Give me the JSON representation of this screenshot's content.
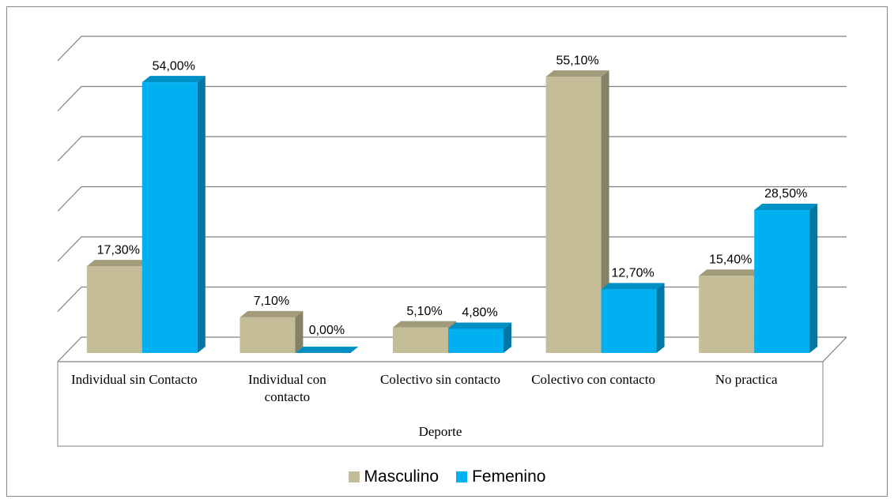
{
  "chart_data": {
    "type": "bar3d",
    "categories": [
      "Individual sin Contacto",
      "Individual con contacto",
      "Colectivo sin contacto",
      "Colectivo con contacto",
      "No practica"
    ],
    "x_label": "Deporte",
    "series": [
      {
        "name": "Masculino",
        "color": "#c4bd97",
        "values": [
          17.3,
          7.1,
          5.1,
          55.1,
          15.4
        ],
        "value_labels": [
          "17,30%",
          "7,10%",
          "5,10%",
          "55,10%",
          "15,40%"
        ]
      },
      {
        "name": "Femenino",
        "color": "#00b0f0",
        "values": [
          54.0,
          0.0,
          4.8,
          12.7,
          28.5
        ],
        "value_labels": [
          "54,00%",
          "0,00%",
          "4,80%",
          "12,70%",
          "28,50%"
        ]
      }
    ],
    "ylim": [
      0,
      60
    ],
    "yticks": [
      0,
      10,
      20,
      30,
      40,
      50,
      60
    ],
    "grid": true,
    "legend": "bottom"
  }
}
